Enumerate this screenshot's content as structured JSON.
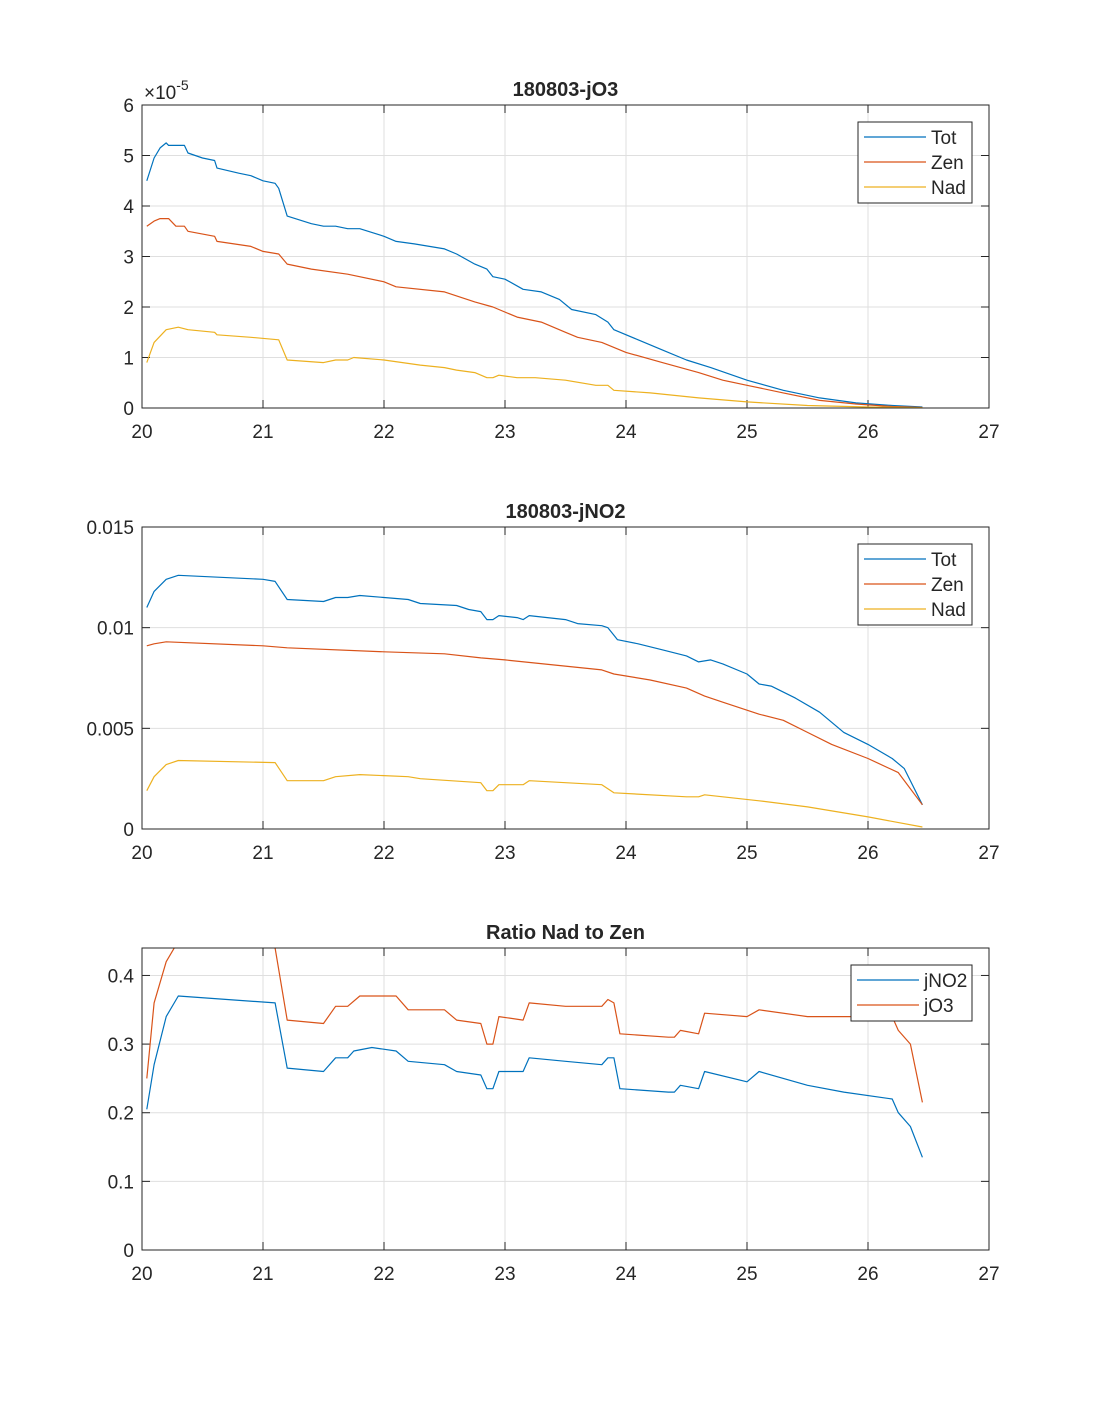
{
  "colors": {
    "blue": "#0072BD",
    "orange": "#D95319",
    "yellow": "#EDB120"
  },
  "chart_data": [
    {
      "type": "line",
      "title": "180803-jO3",
      "xlim": [
        20,
        27
      ],
      "ylim": [
        0,
        6
      ],
      "xticks": [
        "20",
        "21",
        "22",
        "23",
        "24",
        "25",
        "26",
        "27"
      ],
      "xtick_values": [
        20,
        21,
        22,
        23,
        24,
        25,
        26,
        27
      ],
      "yticks": [
        "0",
        "1",
        "2",
        "3",
        "4",
        "5",
        "6"
      ],
      "ytick_values": [
        0,
        1,
        2,
        3,
        4,
        5,
        6
      ],
      "exponent_base": "×10",
      "exponent": "-5",
      "grid": true,
      "legend_position": "top-right",
      "series": [
        {
          "name": "Tot",
          "color": "#0072BD",
          "x": [
            20.04,
            20.1,
            20.15,
            20.2,
            20.22,
            20.3,
            20.35,
            20.38,
            20.5,
            20.6,
            20.62,
            20.8,
            20.9,
            21.0,
            21.1,
            21.13,
            21.2,
            21.4,
            21.5,
            21.6,
            21.7,
            21.8,
            22.0,
            22.1,
            22.25,
            22.5,
            22.6,
            22.75,
            22.85,
            22.9,
            23.0,
            23.15,
            23.3,
            23.45,
            23.55,
            23.75,
            23.85,
            23.9,
            24.1,
            24.3,
            24.5,
            24.7,
            25.0,
            25.3,
            25.6,
            25.9,
            26.2,
            26.45
          ],
          "y": [
            4.5,
            4.95,
            5.15,
            5.25,
            5.2,
            5.2,
            5.2,
            5.05,
            4.95,
            4.9,
            4.75,
            4.65,
            4.6,
            4.5,
            4.45,
            4.35,
            3.8,
            3.65,
            3.6,
            3.6,
            3.55,
            3.55,
            3.4,
            3.3,
            3.25,
            3.15,
            3.05,
            2.85,
            2.75,
            2.6,
            2.55,
            2.35,
            2.3,
            2.15,
            1.95,
            1.85,
            1.7,
            1.55,
            1.35,
            1.15,
            0.95,
            0.8,
            0.55,
            0.35,
            0.2,
            0.1,
            0.05,
            0.02
          ]
        },
        {
          "name": "Zen",
          "color": "#D95319",
          "x": [
            20.04,
            20.1,
            20.15,
            20.22,
            20.28,
            20.35,
            20.38,
            20.6,
            20.62,
            20.9,
            21.0,
            21.13,
            21.2,
            21.4,
            21.7,
            22.0,
            22.1,
            22.5,
            22.75,
            22.9,
            23.1,
            23.3,
            23.5,
            23.6,
            23.8,
            24.0,
            24.3,
            24.6,
            24.8,
            25.0,
            25.3,
            25.6,
            25.9,
            26.2,
            26.45
          ],
          "y": [
            3.6,
            3.7,
            3.75,
            3.75,
            3.6,
            3.6,
            3.5,
            3.4,
            3.3,
            3.2,
            3.1,
            3.05,
            2.85,
            2.75,
            2.65,
            2.5,
            2.4,
            2.3,
            2.1,
            2.0,
            1.8,
            1.7,
            1.5,
            1.4,
            1.3,
            1.1,
            0.9,
            0.7,
            0.55,
            0.45,
            0.3,
            0.15,
            0.08,
            0.03,
            0.01
          ]
        },
        {
          "name": "Nad",
          "color": "#EDB120",
          "x": [
            20.04,
            20.1,
            20.2,
            20.3,
            20.38,
            20.6,
            20.62,
            20.9,
            21.13,
            21.2,
            21.5,
            21.6,
            21.7,
            21.75,
            22.0,
            22.3,
            22.5,
            22.6,
            22.75,
            22.85,
            22.9,
            22.95,
            23.1,
            23.25,
            23.5,
            23.75,
            23.85,
            23.9,
            24.2,
            24.6,
            25.0,
            25.5,
            26.0,
            26.45
          ],
          "y": [
            0.9,
            1.3,
            1.55,
            1.6,
            1.55,
            1.5,
            1.45,
            1.4,
            1.35,
            0.95,
            0.9,
            0.95,
            0.95,
            1.0,
            0.95,
            0.85,
            0.8,
            0.75,
            0.7,
            0.6,
            0.6,
            0.65,
            0.6,
            0.6,
            0.55,
            0.45,
            0.45,
            0.35,
            0.3,
            0.2,
            0.12,
            0.05,
            0.02,
            0.005
          ]
        }
      ]
    },
    {
      "type": "line",
      "title": "180803-jNO2",
      "xlim": [
        20,
        27
      ],
      "ylim": [
        0,
        0.015
      ],
      "xticks": [
        "20",
        "21",
        "22",
        "23",
        "24",
        "25",
        "26",
        "27"
      ],
      "xtick_values": [
        20,
        21,
        22,
        23,
        24,
        25,
        26,
        27
      ],
      "yticks": [
        "0",
        "0.005",
        "0.01",
        "0.015"
      ],
      "ytick_values": [
        0,
        0.005,
        0.01,
        0.015
      ],
      "grid": true,
      "legend_position": "top-right",
      "series": [
        {
          "name": "Tot",
          "color": "#0072BD",
          "x": [
            20.04,
            20.1,
            20.2,
            20.3,
            21.0,
            21.1,
            21.2,
            21.5,
            21.6,
            21.7,
            21.8,
            22.2,
            22.3,
            22.6,
            22.7,
            22.8,
            22.85,
            22.9,
            22.95,
            23.1,
            23.15,
            23.2,
            23.5,
            23.6,
            23.8,
            23.85,
            23.93,
            24.1,
            24.3,
            24.5,
            24.6,
            24.7,
            24.8,
            25.0,
            25.1,
            25.2,
            25.4,
            25.6,
            25.8,
            26.0,
            26.2,
            26.3,
            26.45
          ],
          "y": [
            0.011,
            0.0118,
            0.0124,
            0.0126,
            0.0124,
            0.0123,
            0.0114,
            0.0113,
            0.0115,
            0.0115,
            0.0116,
            0.0114,
            0.0112,
            0.0111,
            0.0109,
            0.0108,
            0.0104,
            0.0104,
            0.0106,
            0.0105,
            0.0104,
            0.0106,
            0.0104,
            0.0102,
            0.0101,
            0.01,
            0.0094,
            0.0092,
            0.0089,
            0.0086,
            0.0083,
            0.0084,
            0.0082,
            0.0077,
            0.0072,
            0.0071,
            0.0065,
            0.0058,
            0.0048,
            0.0042,
            0.0035,
            0.003,
            0.0012
          ]
        },
        {
          "name": "Zen",
          "color": "#D95319",
          "x": [
            20.04,
            20.1,
            20.2,
            21.0,
            21.2,
            22.0,
            22.5,
            22.8,
            23.0,
            23.8,
            23.9,
            24.2,
            24.5,
            24.65,
            24.8,
            25.1,
            25.3,
            25.5,
            25.7,
            26.0,
            26.25,
            26.45
          ],
          "y": [
            0.0091,
            0.0092,
            0.0093,
            0.0091,
            0.009,
            0.0088,
            0.0087,
            0.0085,
            0.0084,
            0.0079,
            0.0077,
            0.0074,
            0.007,
            0.0066,
            0.0063,
            0.0057,
            0.0054,
            0.0048,
            0.0042,
            0.0035,
            0.0028,
            0.0012
          ]
        },
        {
          "name": "Nad",
          "color": "#EDB120",
          "x": [
            20.04,
            20.1,
            20.2,
            20.3,
            21.1,
            21.2,
            21.5,
            21.6,
            21.8,
            22.2,
            22.3,
            22.8,
            22.85,
            22.9,
            22.95,
            23.15,
            23.2,
            23.8,
            23.9,
            24.5,
            24.6,
            24.65,
            25.1,
            25.5,
            26.0,
            26.45
          ],
          "y": [
            0.0019,
            0.0026,
            0.0032,
            0.0034,
            0.0033,
            0.0024,
            0.0024,
            0.0026,
            0.0027,
            0.0026,
            0.0025,
            0.0023,
            0.0019,
            0.0019,
            0.0022,
            0.0022,
            0.0024,
            0.0022,
            0.0018,
            0.0016,
            0.0016,
            0.0017,
            0.0014,
            0.0011,
            0.0006,
            0.0001
          ]
        }
      ]
    },
    {
      "type": "line",
      "title": "Ratio Nad to Zen",
      "xlim": [
        20,
        27
      ],
      "ylim": [
        0,
        0.44
      ],
      "xticks": [
        "20",
        "21",
        "22",
        "23",
        "24",
        "25",
        "26",
        "27"
      ],
      "xtick_values": [
        20,
        21,
        22,
        23,
        24,
        25,
        26,
        27
      ],
      "yticks": [
        "0",
        "0.1",
        "0.2",
        "0.3",
        "0.4"
      ],
      "ytick_values": [
        0,
        0.1,
        0.2,
        0.3,
        0.4
      ],
      "grid": true,
      "legend_position": "top-right",
      "series": [
        {
          "name": "jNO2",
          "color": "#0072BD",
          "x": [
            20.04,
            20.1,
            20.2,
            20.3,
            21.1,
            21.2,
            21.5,
            21.6,
            21.7,
            21.75,
            21.9,
            22.1,
            22.2,
            22.5,
            22.6,
            22.8,
            22.85,
            22.9,
            22.95,
            23.15,
            23.2,
            23.5,
            23.8,
            23.85,
            23.9,
            23.95,
            24.35,
            24.4,
            24.45,
            24.6,
            24.65,
            25.0,
            25.1,
            25.5,
            25.8,
            26.2,
            26.25,
            26.35,
            26.45
          ],
          "y": [
            0.205,
            0.27,
            0.34,
            0.37,
            0.36,
            0.265,
            0.26,
            0.28,
            0.28,
            0.29,
            0.295,
            0.29,
            0.275,
            0.27,
            0.26,
            0.255,
            0.235,
            0.235,
            0.26,
            0.26,
            0.28,
            0.275,
            0.27,
            0.28,
            0.28,
            0.235,
            0.23,
            0.23,
            0.24,
            0.235,
            0.26,
            0.245,
            0.26,
            0.24,
            0.23,
            0.22,
            0.2,
            0.18,
            0.135
          ]
        },
        {
          "name": "jO3",
          "color": "#D95319",
          "x": [
            20.04,
            20.1,
            20.2,
            20.3,
            21.1,
            21.2,
            21.5,
            21.6,
            21.7,
            21.8,
            22.1,
            22.2,
            22.5,
            22.6,
            22.8,
            22.85,
            22.9,
            22.95,
            23.15,
            23.2,
            23.5,
            23.8,
            23.85,
            23.9,
            23.95,
            24.35,
            24.4,
            24.45,
            24.6,
            24.65,
            25.0,
            25.1,
            25.5,
            25.8,
            26.2,
            26.25,
            26.35,
            26.45
          ],
          "y": [
            0.25,
            0.36,
            0.42,
            0.45,
            0.44,
            0.335,
            0.33,
            0.355,
            0.355,
            0.37,
            0.37,
            0.35,
            0.35,
            0.335,
            0.33,
            0.3,
            0.3,
            0.34,
            0.335,
            0.36,
            0.355,
            0.355,
            0.365,
            0.36,
            0.315,
            0.31,
            0.31,
            0.32,
            0.315,
            0.345,
            0.34,
            0.35,
            0.34,
            0.34,
            0.34,
            0.32,
            0.3,
            0.215
          ]
        }
      ]
    }
  ]
}
